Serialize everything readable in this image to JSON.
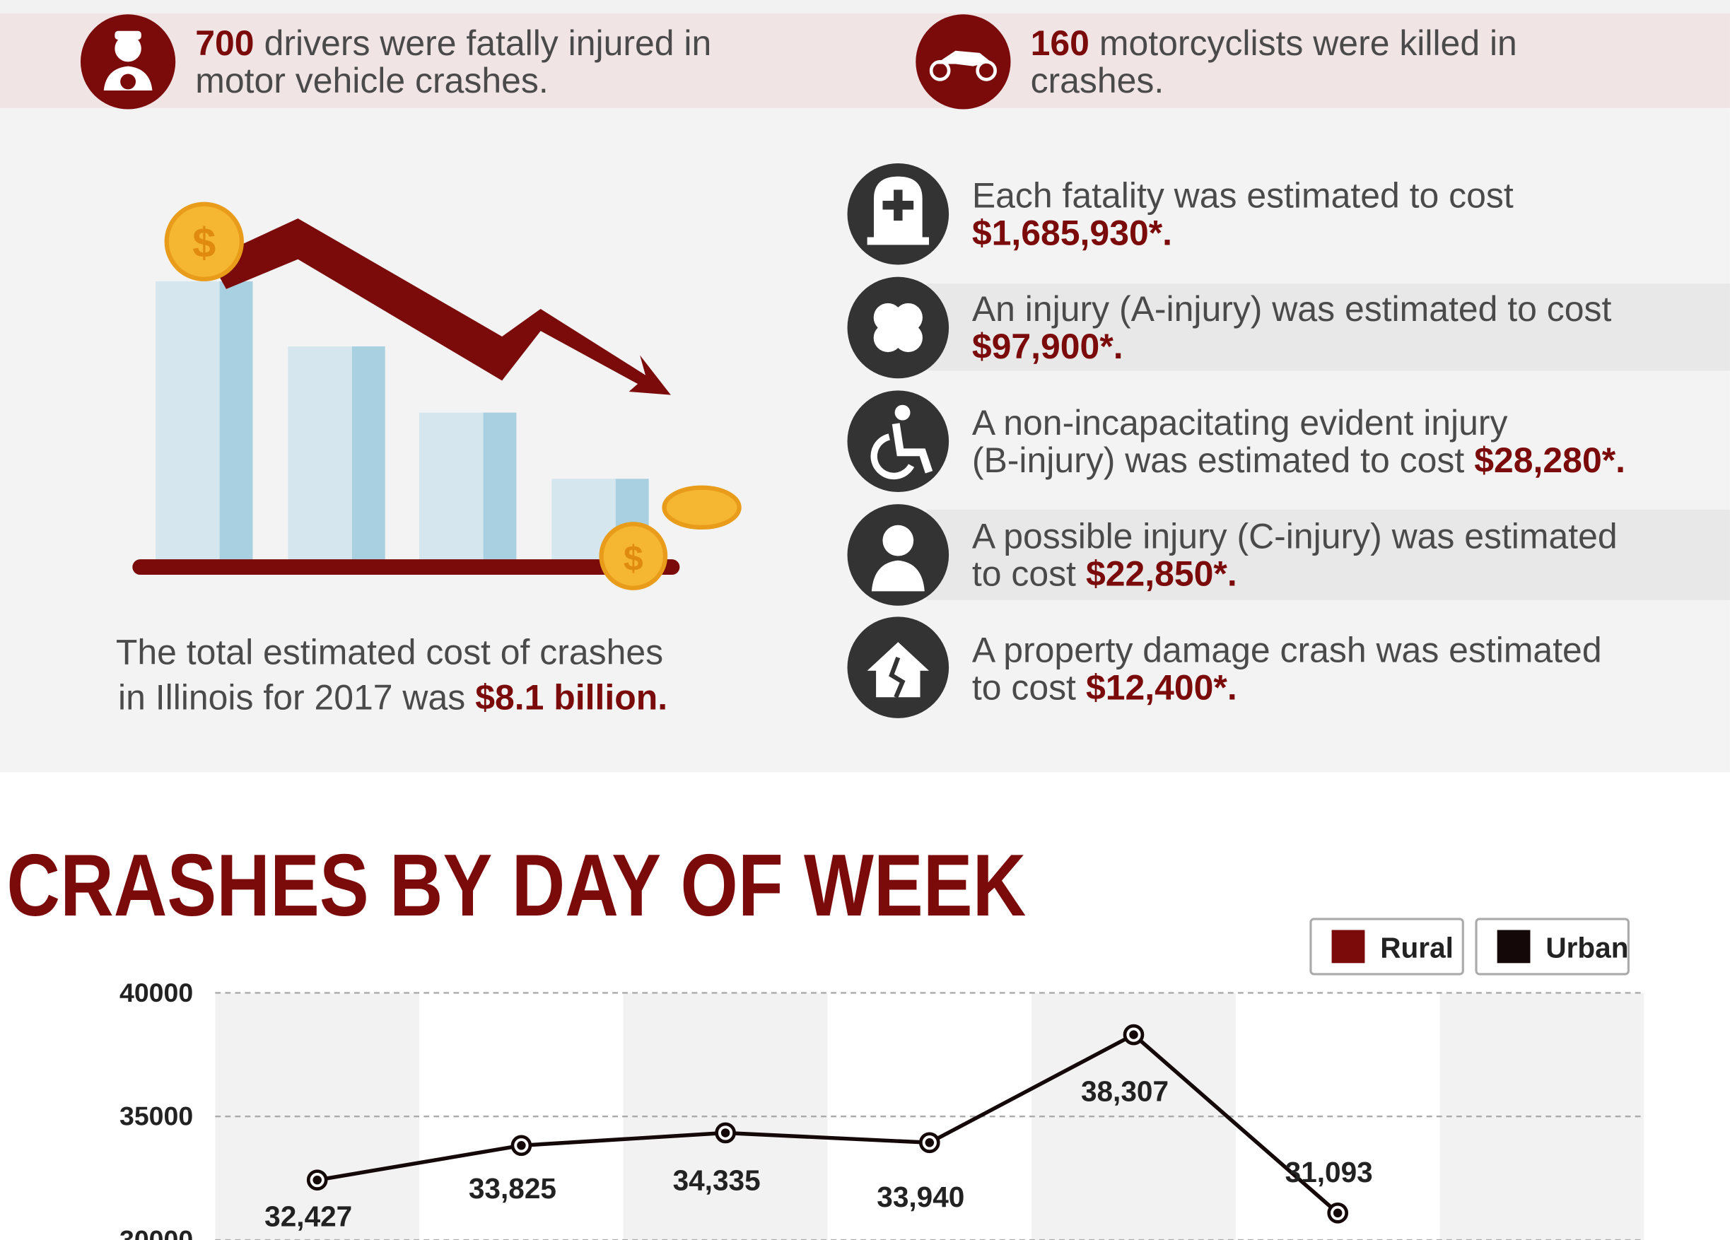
{
  "stats": [
    {
      "number": "700",
      "lines": [
        "drivers were fatally injured in",
        "motor vehicle crashes."
      ]
    },
    {
      "number": "160",
      "lines": [
        "motorcyclists were killed in",
        "crashes."
      ]
    }
  ],
  "total": {
    "lines": [
      "The total estimated cost of crashes",
      "in Illinois for 2017 was"
    ],
    "amount": "$8.1 billion."
  },
  "costs": [
    {
      "line1": "Each fatality was estimated to cost",
      "amount": "$1,685,930*."
    },
    {
      "line1": "An  injury (A-injury) was estimated to cost",
      "amount": "$97,900*."
    },
    {
      "line1": "A non-incapacitating evident injury",
      "line2": "(B-injury) was estimated to cost",
      "amount": "$28,280*."
    },
    {
      "line1": "A possible injury (C-injury) was estimated",
      "line2": "to cost",
      "amount": "$22,850*."
    },
    {
      "line1": "A property damage crash was estimated",
      "line2": "to cost",
      "amount": "$12,400*."
    }
  ],
  "chart_data": {
    "type": "line",
    "title": "CRASHES BY DAY OF WEEK",
    "categories": [
      null,
      null,
      null,
      null,
      null,
      null,
      null
    ],
    "series": [
      {
        "name": "Rural",
        "color": "#7b0a0a",
        "values": [
          null,
          null,
          null,
          null,
          null,
          null,
          null
        ]
      },
      {
        "name": "Urban",
        "color": "#140808",
        "values": [
          32427,
          33825,
          34335,
          33940,
          38307,
          31093,
          null
        ],
        "value_labels": [
          "32,427",
          "33,825",
          "34,335",
          "33,940",
          "38,307",
          "31,093",
          null
        ]
      }
    ],
    "ylim": [
      30000,
      40000
    ],
    "yticks": [
      30000,
      35000,
      40000
    ],
    "grid": true,
    "legend": "top-right"
  }
}
